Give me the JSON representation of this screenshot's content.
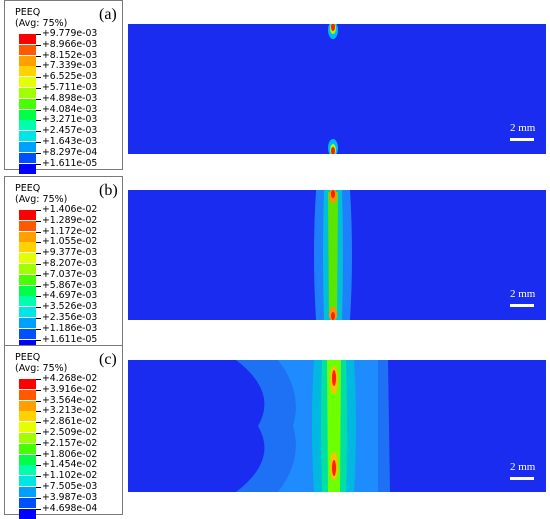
{
  "panels": [
    {
      "label": "(a)",
      "legend_title": "PEEQ",
      "legend_subtitle": "(Avg: 75%)",
      "values": [
        "+9.779e-03",
        "+8.966e-03",
        "+8.152e-03",
        "+7.339e-03",
        "+6.525e-03",
        "+5.711e-03",
        "+4.898e-03",
        "+4.084e-03",
        "+3.271e-03",
        "+2.457e-03",
        "+1.643e-03",
        "+8.297e-04",
        "+1.611e-05"
      ],
      "scale_label": "2 mm"
    },
    {
      "label": "(b)",
      "legend_title": "PEEQ",
      "legend_subtitle": "(Avg: 75%)",
      "values": [
        "+1.406e-02",
        "+1.289e-02",
        "+1.172e-02",
        "+1.055e-02",
        "+9.377e-03",
        "+8.207e-03",
        "+7.037e-03",
        "+5.867e-03",
        "+4.697e-03",
        "+3.526e-03",
        "+2.356e-03",
        "+1.186e-03",
        "+1.611e-05"
      ],
      "scale_label": "2 mm"
    },
    {
      "label": "(c)",
      "legend_title": "PEEQ",
      "legend_subtitle": "(Avg: 75%)",
      "values": [
        "+4.268e-02",
        "+3.916e-02",
        "+3.564e-02",
        "+3.213e-02",
        "+2.861e-02",
        "+2.509e-02",
        "+2.157e-02",
        "+1.806e-02",
        "+1.454e-02",
        "+1.102e-02",
        "+7.505e-03",
        "+3.987e-03",
        "+4.698e-04"
      ],
      "scale_label": "2 mm"
    }
  ],
  "colors": {
    "legend_scale": [
      "#ff0000",
      "#ff5a00",
      "#ffa000",
      "#ffd200",
      "#e6ff00",
      "#a0ff00",
      "#46ff00",
      "#00ff46",
      "#00ffaa",
      "#00e6e6",
      "#00a0ff",
      "#0050ff",
      "#0000ff"
    ],
    "plate_background": "#1a2cf0",
    "band_light": "#1e8cff",
    "band_mid": "#00d0c0",
    "band_core": "#6eff00",
    "hotspot": "#ff2000"
  }
}
